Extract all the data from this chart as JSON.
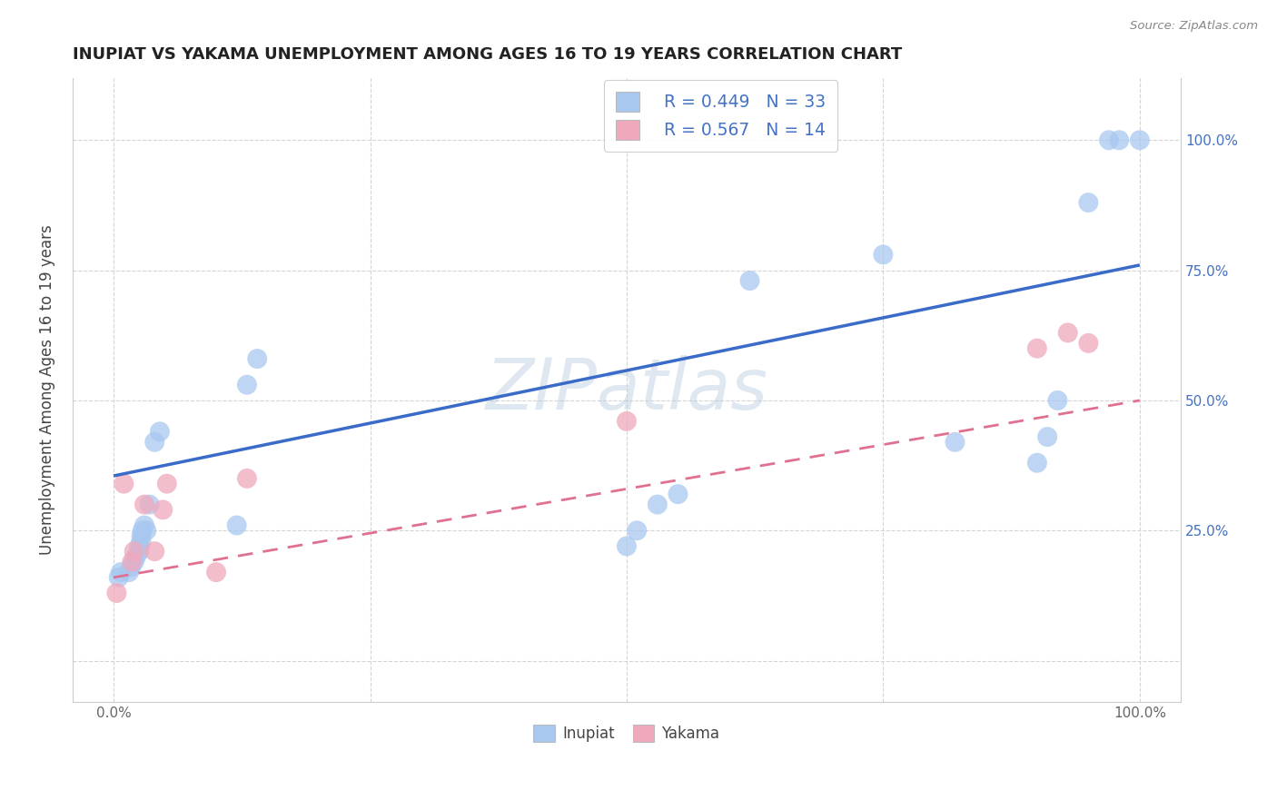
{
  "title": "INUPIAT VS YAKAMA UNEMPLOYMENT AMONG AGES 16 TO 19 YEARS CORRELATION CHART",
  "source": "Source: ZipAtlas.com",
  "ylabel": "Unemployment Among Ages 16 to 19 years",
  "watermark": "ZIPatlas",
  "legend_R_inupiat": "R = 0.449",
  "legend_N_inupiat": "N = 33",
  "legend_R_yakama": "R = 0.567",
  "legend_N_yakama": "N = 14",
  "inupiat_color": "#a8c8f0",
  "yakama_color": "#f0a8bc",
  "inupiat_line_color": "#3a6bc8",
  "yakama_line_color": "#e07090",
  "right_ytick_color": "#4472c4",
  "xlim": [
    -0.04,
    1.04
  ],
  "ylim": [
    -0.08,
    1.12
  ],
  "xticks": [
    0.0,
    0.25,
    0.5,
    0.75,
    1.0
  ],
  "xtick_labels": [
    "0.0%",
    "",
    "",
    "",
    "100.0%"
  ],
  "yticks": [
    0.0,
    0.25,
    0.5,
    0.75,
    1.0
  ],
  "right_ytick_labels": [
    "25.0%",
    "50.0%",
    "75.0%",
    "100.0%"
  ],
  "right_yticks": [
    0.25,
    0.5,
    0.75,
    1.0
  ],
  "inupiat_x": [
    0.005,
    0.007,
    0.015,
    0.017,
    0.02,
    0.022,
    0.025,
    0.025,
    0.027,
    0.027,
    0.028,
    0.03,
    0.032,
    0.035,
    0.04,
    0.045,
    0.12,
    0.13,
    0.14,
    0.5,
    0.51,
    0.53,
    0.55,
    0.62,
    0.75,
    0.82,
    0.9,
    0.91,
    0.92,
    0.95,
    0.97,
    0.98,
    1.0
  ],
  "inupiat_y": [
    0.16,
    0.17,
    0.17,
    0.18,
    0.19,
    0.2,
    0.21,
    0.22,
    0.23,
    0.24,
    0.25,
    0.26,
    0.25,
    0.3,
    0.42,
    0.44,
    0.26,
    0.53,
    0.58,
    0.22,
    0.25,
    0.3,
    0.32,
    0.73,
    0.78,
    0.42,
    0.38,
    0.43,
    0.5,
    0.88,
    1.0,
    1.0,
    1.0
  ],
  "yakama_x": [
    0.003,
    0.01,
    0.018,
    0.02,
    0.03,
    0.04,
    0.048,
    0.052,
    0.1,
    0.13,
    0.5,
    0.9,
    0.93,
    0.95
  ],
  "yakama_y": [
    0.13,
    0.34,
    0.19,
    0.21,
    0.3,
    0.21,
    0.29,
    0.34,
    0.17,
    0.35,
    0.46,
    0.6,
    0.63,
    0.61
  ],
  "inupiat_line_x0": 0.0,
  "inupiat_line_y0": 0.355,
  "inupiat_line_x1": 1.0,
  "inupiat_line_y1": 0.76,
  "yakama_line_x0": 0.0,
  "yakama_line_y0": 0.16,
  "yakama_line_x1": 1.0,
  "yakama_line_y1": 0.5
}
